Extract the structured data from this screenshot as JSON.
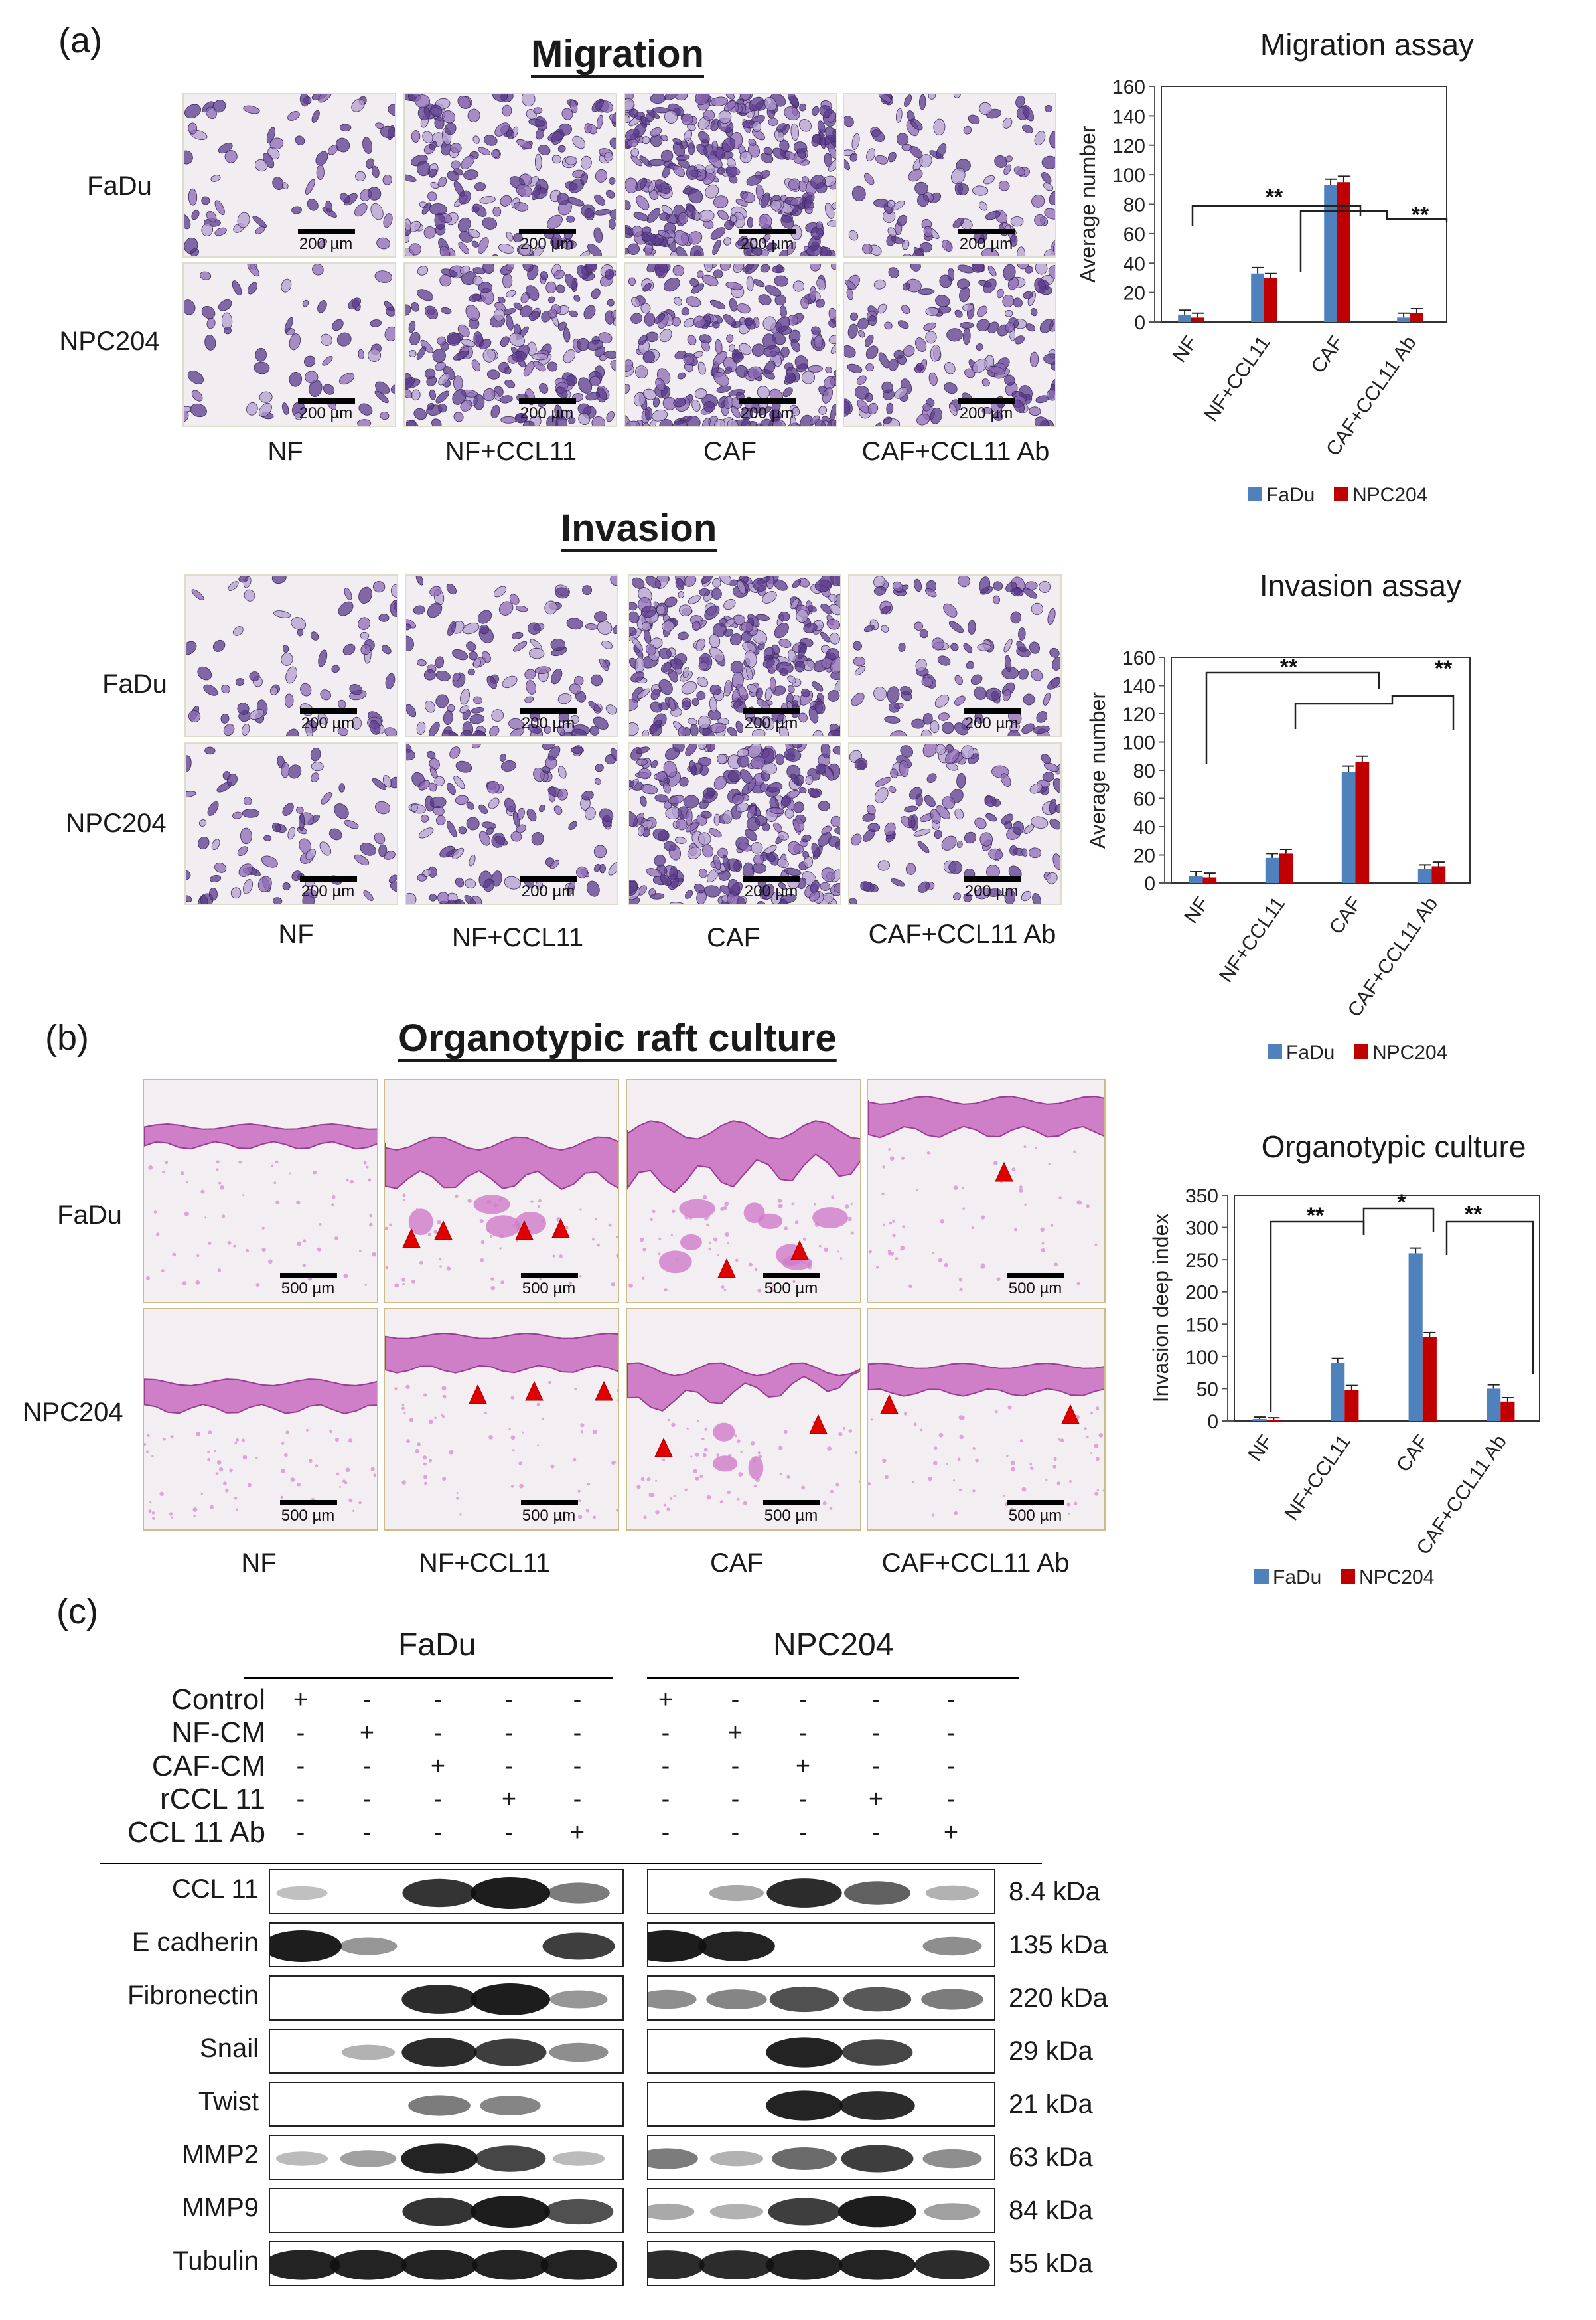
{
  "panel_a": {
    "label": "(a)",
    "migration_title": "Migration",
    "invasion_title": "Invasion",
    "rows": [
      "FaDu",
      "NPC204"
    ],
    "columns": [
      "NF",
      "NF+CCL11",
      "CAF",
      "CAF+CCL11 Ab"
    ],
    "scale_label": "200 µm"
  },
  "panel_b": {
    "label": "(b)",
    "title": "Organotypic raft culture",
    "rows": [
      "FaDu",
      "NPC204"
    ],
    "columns": [
      "NF",
      "NF+CCL11",
      "CAF",
      "CAF+CCL11 Ab"
    ],
    "scale_label": "500 µm"
  },
  "chart_data": [
    {
      "type": "bar",
      "title": "Migration assay",
      "ylabel": "Average number",
      "categories": [
        "NF",
        "NF+CCL11",
        "CAF",
        "CAF+CCL11 Ab"
      ],
      "ylim": [
        0,
        160
      ],
      "yticks": [
        0,
        20,
        40,
        60,
        80,
        100,
        120,
        140,
        160
      ],
      "series": [
        {
          "name": "FaDu",
          "color": "#4f81bd",
          "values": [
            5,
            33,
            93,
            3
          ],
          "errors": [
            1,
            2,
            2,
            1
          ]
        },
        {
          "name": "NPC204",
          "color": "#c00000",
          "values": [
            3,
            30,
            95,
            6
          ],
          "errors": [
            1,
            1,
            2,
            1
          ]
        }
      ],
      "annotations": [
        "**",
        "**"
      ]
    },
    {
      "type": "bar",
      "title": "Invasion assay",
      "ylabel": "Average  number",
      "categories": [
        "NF",
        "NF+CCL11",
        "CAF",
        "CAF+CCL11 Ab"
      ],
      "ylim": [
        0,
        160
      ],
      "yticks": [
        0,
        20,
        40,
        60,
        80,
        100,
        120,
        140,
        160
      ],
      "series": [
        {
          "name": "FaDu",
          "color": "#4f81bd",
          "values": [
            5,
            18,
            79,
            10
          ],
          "errors": [
            1,
            1,
            2,
            1
          ]
        },
        {
          "name": "NPC204",
          "color": "#c00000",
          "values": [
            4,
            21,
            86,
            12
          ],
          "errors": [
            1,
            1,
            2,
            1
          ]
        }
      ],
      "annotations": [
        "**",
        "**"
      ]
    },
    {
      "type": "bar",
      "title": "Organotypic culture",
      "ylabel": "Invasion deep index",
      "categories": [
        "NF",
        "NF+CCL11",
        "CAF",
        "CAF+CCL11 Ab"
      ],
      "ylim": [
        0,
        350
      ],
      "yticks": [
        0,
        50,
        100,
        150,
        200,
        250,
        300,
        350
      ],
      "series": [
        {
          "name": "FaDu",
          "color": "#4f81bd",
          "values": [
            3,
            90,
            260,
            50
          ],
          "errors": [
            1,
            5,
            6,
            4
          ]
        },
        {
          "name": "NPC204",
          "color": "#c00000",
          "values": [
            2,
            48,
            130,
            30
          ],
          "errors": [
            1,
            5,
            5,
            4
          ]
        }
      ],
      "annotations": [
        "**",
        "*",
        "**"
      ]
    }
  ],
  "panel_c": {
    "label": "(c)",
    "groups": [
      "FaDu",
      "NPC204"
    ],
    "treatments": [
      {
        "name": "Control",
        "signs": [
          "+",
          "-",
          "-",
          "-",
          "-",
          "+",
          "-",
          "-",
          "-",
          "-"
        ]
      },
      {
        "name": "NF-CM",
        "signs": [
          "-",
          "+",
          "-",
          "-",
          "-",
          "-",
          "+",
          "-",
          "-",
          "-"
        ]
      },
      {
        "name": "CAF-CM",
        "signs": [
          "-",
          "-",
          "+",
          "-",
          "-",
          "-",
          "-",
          "+",
          "-",
          "-"
        ]
      },
      {
        "name": "rCCL 11",
        "signs": [
          "-",
          "-",
          "-",
          "+",
          "-",
          "-",
          "-",
          "-",
          "+",
          "-"
        ]
      },
      {
        "name": "CCL 11 Ab",
        "signs": [
          "-",
          "-",
          "-",
          "-",
          "+",
          "-",
          "-",
          "-",
          "-",
          "+"
        ]
      }
    ],
    "blots": [
      {
        "name": "CCL 11",
        "kda": "8.4 kDa",
        "fadu": [
          0.02,
          0.0,
          0.8,
          1.0,
          0.4
        ],
        "npc": [
          0.0,
          0.15,
          0.85,
          0.55,
          0.1
        ]
      },
      {
        "name": "E cadherin",
        "kda": "135 kDa",
        "fadu": [
          1.0,
          0.25,
          0.0,
          0.0,
          0.75
        ],
        "npc": [
          1.0,
          0.9,
          0.0,
          0.0,
          0.3
        ]
      },
      {
        "name": "Fibronectin",
        "kda": "220 kDa",
        "fadu": [
          0.0,
          0.0,
          0.85,
          1.0,
          0.25
        ],
        "npc": [
          0.3,
          0.35,
          0.65,
          0.6,
          0.4
        ]
      },
      {
        "name": "Snail",
        "kda": "29 kDa",
        "fadu": [
          0.0,
          0.1,
          0.85,
          0.75,
          0.3
        ],
        "npc": [
          0.0,
          0.0,
          0.9,
          0.7,
          0.0
        ]
      },
      {
        "name": "Twist",
        "kda": "21 kDa",
        "fadu": [
          0.0,
          0.0,
          0.4,
          0.35,
          0.0
        ],
        "npc": [
          0.0,
          0.0,
          0.9,
          0.85,
          0.0
        ]
      },
      {
        "name": "MMP2",
        "kda": "63 kDa",
        "fadu": [
          0.05,
          0.2,
          0.9,
          0.7,
          0.05
        ],
        "npc": [
          0.4,
          0.1,
          0.5,
          0.75,
          0.3
        ]
      },
      {
        "name": "MMP9",
        "kda": "84 kDa",
        "fadu": [
          0.0,
          0.0,
          0.8,
          1.0,
          0.65
        ],
        "npc": [
          0.15,
          0.1,
          0.75,
          0.95,
          0.2
        ]
      },
      {
        "name": "Tubulin",
        "kda": "55  kDa",
        "fadu": [
          0.9,
          0.9,
          0.9,
          0.9,
          0.9
        ],
        "npc": [
          0.85,
          0.85,
          0.9,
          0.9,
          0.85
        ]
      }
    ]
  }
}
